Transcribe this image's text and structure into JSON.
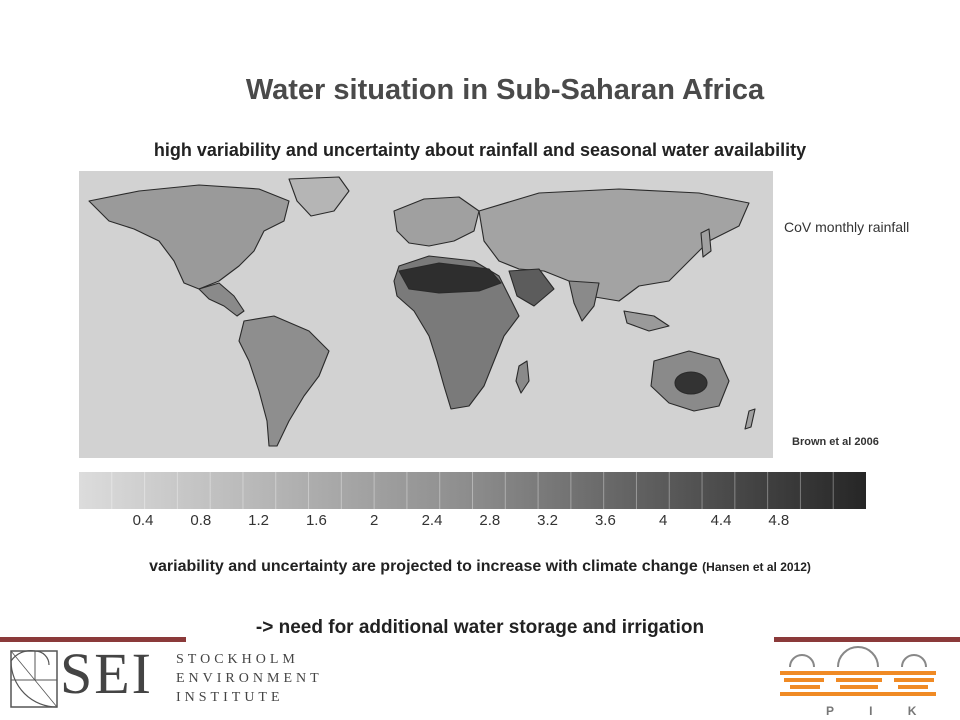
{
  "slide": {
    "title": "Water situation in Sub-Saharan Africa",
    "subtitle": "high variability and uncertainty about rainfall and seasonal water availability",
    "map_label": "CoV monthly rainfall",
    "map_source": "Brown et al 2006",
    "colorbar_ticks": [
      "0.4",
      "0.8",
      "1.2",
      "1.6",
      "2",
      "2.4",
      "2.8",
      "3.2",
      "3.6",
      "4",
      "4.4",
      "4.8"
    ],
    "projection_text": "variability and uncertainty are projected to increase with climate change",
    "projection_source": "(Hansen et al 2012)",
    "conclusion": "-> need for additional water storage and irrigation"
  },
  "logos": {
    "sei_letters": "SEI",
    "sei_line1": "STOCKHOLM",
    "sei_line2": "ENVIRONMENT",
    "sei_line3": "INSTITUTE",
    "pik_letters": "P I K"
  },
  "colors": {
    "accent_rule": "#8b3a3a",
    "pik_orange": "#f08a24",
    "map_background": "#d2d2d2"
  }
}
